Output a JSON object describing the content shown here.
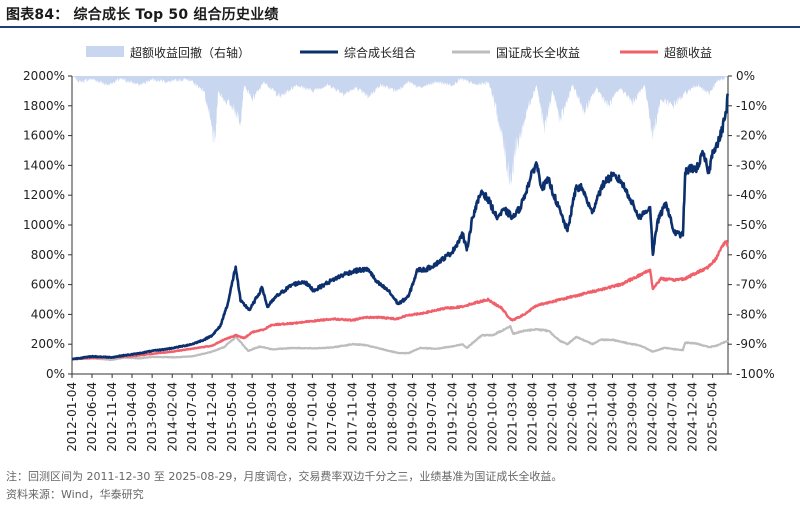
{
  "title": "图表84：  综合成长 Top 50 组合历史业绩",
  "footnote": "注：回测区间为 2011-12-30 至 2025-08-29，月度调仓，交易费率双边千分之三，业绩基准为国证成长全收益。",
  "source": "资料来源：Wind，华泰研究",
  "colors": {
    "portfolio": "#0c2f6e",
    "benchmark": "#bdbdbd",
    "excess": "#f0606a",
    "drawdown": "#c9d6ef",
    "title_rule": "#1f3e7a"
  },
  "chart_data": {
    "type": "line",
    "legend": [
      {
        "key": "drawdown",
        "label": "超额收益回撤（右轴）"
      },
      {
        "key": "portfolio",
        "label": "综合成长组合"
      },
      {
        "key": "benchmark",
        "label": "国证成长全收益"
      },
      {
        "key": "excess",
        "label": "超额收益"
      }
    ],
    "y_left": {
      "min": 0,
      "max": 2000,
      "step": 200,
      "ticks": [
        "0%",
        "200%",
        "400%",
        "600%",
        "800%",
        "1000%",
        "1200%",
        "1400%",
        "1600%",
        "1800%",
        "2000%"
      ]
    },
    "y_right": {
      "min": -100,
      "max": 0,
      "step": 10,
      "ticks": [
        "-100%",
        "-90%",
        "-80%",
        "-70%",
        "-60%",
        "-50%",
        "-40%",
        "-30%",
        "-20%",
        "-10%",
        "0%"
      ]
    },
    "x_start": "2012-01-04",
    "x_end": "2025-08-29",
    "x_ticks": [
      "2012-01-04",
      "2012-06-04",
      "2012-11-04",
      "2013-04-04",
      "2013-09-04",
      "2014-02-04",
      "2014-07-04",
      "2014-12-04",
      "2015-05-04",
      "2015-10-04",
      "2016-03-04",
      "2016-08-04",
      "2017-01-04",
      "2017-06-04",
      "2017-11-04",
      "2018-04-04",
      "2018-09-04",
      "2019-02-04",
      "2019-07-04",
      "2019-12-04",
      "2020-05-04",
      "2020-10-04",
      "2021-03-04",
      "2021-08-04",
      "2022-01-04",
      "2022-06-04",
      "2022-11-04",
      "2023-04-04",
      "2023-09-04",
      "2024-02-04",
      "2024-07-04",
      "2024-12-04",
      "2025-05-04"
    ],
    "series": [
      {
        "name": "综合成长组合",
        "key": "portfolio",
        "axis": "left",
        "points": [
          [
            "2012-01-04",
            100
          ],
          [
            "2012-06-04",
            118
          ],
          [
            "2012-11-04",
            112
          ],
          [
            "2013-02-04",
            125
          ],
          [
            "2013-05-04",
            135
          ],
          [
            "2013-09-04",
            155
          ],
          [
            "2013-12-04",
            165
          ],
          [
            "2014-03-04",
            178
          ],
          [
            "2014-07-04",
            200
          ],
          [
            "2014-10-04",
            230
          ],
          [
            "2014-12-04",
            260
          ],
          [
            "2015-02-04",
            320
          ],
          [
            "2015-04-04",
            480
          ],
          [
            "2015-06-01",
            720
          ],
          [
            "2015-07-08",
            490
          ],
          [
            "2015-09-15",
            430
          ],
          [
            "2015-12-20",
            580
          ],
          [
            "2016-01-28",
            450
          ],
          [
            "2016-04-04",
            520
          ],
          [
            "2016-08-04",
            600
          ],
          [
            "2016-11-04",
            620
          ],
          [
            "2017-01-15",
            560
          ],
          [
            "2017-04-04",
            600
          ],
          [
            "2017-06-04",
            630
          ],
          [
            "2017-09-04",
            670
          ],
          [
            "2017-11-15",
            690
          ],
          [
            "2018-01-20",
            700
          ],
          [
            "2018-03-10",
            700
          ],
          [
            "2018-05-04",
            620
          ],
          [
            "2018-08-04",
            560
          ],
          [
            "2018-10-19",
            470
          ],
          [
            "2019-01-04",
            520
          ],
          [
            "2019-03-15",
            700
          ],
          [
            "2019-05-15",
            700
          ],
          [
            "2019-08-04",
            740
          ],
          [
            "2019-10-04",
            780
          ],
          [
            "2019-12-04",
            820
          ],
          [
            "2020-02-20",
            940
          ],
          [
            "2020-03-23",
            830
          ],
          [
            "2020-05-04",
            1050
          ],
          [
            "2020-07-14",
            1230
          ],
          [
            "2020-09-15",
            1150
          ],
          [
            "2020-11-04",
            1050
          ],
          [
            "2021-01-04",
            1100
          ],
          [
            "2021-03-10",
            1050
          ],
          [
            "2021-05-04",
            1120
          ],
          [
            "2021-07-15",
            1300
          ],
          [
            "2021-09-01",
            1420
          ],
          [
            "2021-10-15",
            1250
          ],
          [
            "2021-12-04",
            1300
          ],
          [
            "2022-02-04",
            1150
          ],
          [
            "2022-04-27",
            960
          ],
          [
            "2022-06-30",
            1250
          ],
          [
            "2022-08-15",
            1250
          ],
          [
            "2022-10-31",
            1080
          ],
          [
            "2022-12-15",
            1200
          ],
          [
            "2023-02-04",
            1290
          ],
          [
            "2023-04-04",
            1330
          ],
          [
            "2023-06-04",
            1300
          ],
          [
            "2023-08-04",
            1200
          ],
          [
            "2023-10-24",
            1050
          ],
          [
            "2024-01-15",
            1120
          ],
          [
            "2024-02-05",
            800
          ],
          [
            "2024-03-10",
            1020
          ],
          [
            "2024-05-15",
            1150
          ],
          [
            "2024-07-15",
            950
          ],
          [
            "2024-09-20",
            930
          ],
          [
            "2024-10-08",
            1350
          ],
          [
            "2024-11-15",
            1380
          ],
          [
            "2025-01-04",
            1380
          ],
          [
            "2025-02-20",
            1480
          ],
          [
            "2025-04-07",
            1350
          ],
          [
            "2025-05-04",
            1500
          ],
          [
            "2025-06-15",
            1550
          ],
          [
            "2025-07-15",
            1640
          ],
          [
            "2025-08-15",
            1760
          ],
          [
            "2025-08-29",
            1880
          ]
        ]
      },
      {
        "name": "国证成长全收益",
        "key": "benchmark",
        "axis": "left",
        "points": [
          [
            "2012-01-04",
            100
          ],
          [
            "2012-06-04",
            105
          ],
          [
            "2012-11-04",
            95
          ],
          [
            "2013-02-04",
            110
          ],
          [
            "2013-06-04",
            105
          ],
          [
            "2013-09-04",
            115
          ],
          [
            "2014-03-04",
            112
          ],
          [
            "2014-07-04",
            118
          ],
          [
            "2014-12-04",
            150
          ],
          [
            "2015-03-04",
            180
          ],
          [
            "2015-06-04",
            250
          ],
          [
            "2015-09-04",
            155
          ],
          [
            "2015-12-04",
            185
          ],
          [
            "2016-03-04",
            165
          ],
          [
            "2016-08-04",
            175
          ],
          [
            "2017-01-04",
            172
          ],
          [
            "2017-06-04",
            178
          ],
          [
            "2017-11-04",
            200
          ],
          [
            "2018-02-04",
            195
          ],
          [
            "2018-06-04",
            170
          ],
          [
            "2018-10-19",
            140
          ],
          [
            "2019-01-04",
            140
          ],
          [
            "2019-04-04",
            175
          ],
          [
            "2019-08-04",
            170
          ],
          [
            "2019-12-04",
            185
          ],
          [
            "2020-02-20",
            200
          ],
          [
            "2020-03-23",
            175
          ],
          [
            "2020-07-14",
            260
          ],
          [
            "2020-10-04",
            260
          ],
          [
            "2021-01-04",
            300
          ],
          [
            "2021-02-18",
            320
          ],
          [
            "2021-03-10",
            270
          ],
          [
            "2021-06-04",
            290
          ],
          [
            "2021-09-01",
            300
          ],
          [
            "2021-12-04",
            290
          ],
          [
            "2022-03-04",
            220
          ],
          [
            "2022-04-27",
            200
          ],
          [
            "2022-07-04",
            250
          ],
          [
            "2022-10-31",
            200
          ],
          [
            "2023-01-04",
            230
          ],
          [
            "2023-04-04",
            230
          ],
          [
            "2023-08-04",
            205
          ],
          [
            "2023-11-04",
            190
          ],
          [
            "2024-02-05",
            150
          ],
          [
            "2024-05-04",
            175
          ],
          [
            "2024-09-20",
            160
          ],
          [
            "2024-10-08",
            210
          ],
          [
            "2025-01-04",
            205
          ],
          [
            "2025-04-07",
            180
          ],
          [
            "2025-06-04",
            190
          ],
          [
            "2025-08-29",
            225
          ]
        ]
      },
      {
        "name": "超额收益",
        "key": "excess",
        "axis": "left",
        "points": [
          [
            "2012-01-04",
            100
          ],
          [
            "2012-06-04",
            108
          ],
          [
            "2012-11-04",
            112
          ],
          [
            "2013-04-04",
            120
          ],
          [
            "2013-09-04",
            135
          ],
          [
            "2014-02-04",
            150
          ],
          [
            "2014-07-04",
            170
          ],
          [
            "2014-12-04",
            190
          ],
          [
            "2015-03-04",
            230
          ],
          [
            "2015-06-04",
            260
          ],
          [
            "2015-08-04",
            240
          ],
          [
            "2015-10-04",
            280
          ],
          [
            "2016-01-04",
            300
          ],
          [
            "2016-03-04",
            330
          ],
          [
            "2016-08-04",
            340
          ],
          [
            "2017-01-04",
            355
          ],
          [
            "2017-06-04",
            370
          ],
          [
            "2017-11-04",
            360
          ],
          [
            "2018-02-04",
            380
          ],
          [
            "2018-06-04",
            380
          ],
          [
            "2018-10-04",
            370
          ],
          [
            "2019-01-04",
            395
          ],
          [
            "2019-05-04",
            410
          ],
          [
            "2019-10-04",
            440
          ],
          [
            "2020-02-04",
            450
          ],
          [
            "2020-06-04",
            480
          ],
          [
            "2020-09-04",
            500
          ],
          [
            "2020-10-04",
            480
          ],
          [
            "2020-12-15",
            440
          ],
          [
            "2021-02-04",
            380
          ],
          [
            "2021-03-04",
            360
          ],
          [
            "2021-06-04",
            400
          ],
          [
            "2021-09-04",
            460
          ],
          [
            "2021-12-04",
            480
          ],
          [
            "2022-03-04",
            500
          ],
          [
            "2022-06-04",
            520
          ],
          [
            "2022-09-04",
            540
          ],
          [
            "2022-12-04",
            560
          ],
          [
            "2023-03-04",
            580
          ],
          [
            "2023-06-04",
            600
          ],
          [
            "2023-09-04",
            640
          ],
          [
            "2023-12-04",
            680
          ],
          [
            "2024-01-15",
            700
          ],
          [
            "2024-02-05",
            570
          ],
          [
            "2024-04-04",
            640
          ],
          [
            "2024-07-04",
            630
          ],
          [
            "2024-10-04",
            640
          ],
          [
            "2025-01-04",
            680
          ],
          [
            "2025-04-04",
            720
          ],
          [
            "2025-06-04",
            780
          ],
          [
            "2025-07-15",
            860
          ],
          [
            "2025-08-15",
            890
          ],
          [
            "2025-08-29",
            860
          ]
        ]
      },
      {
        "name": "超额收益回撤（右轴）",
        "key": "drawdown",
        "axis": "right",
        "points": [
          [
            "2012-01-04",
            0
          ],
          [
            "2012-03-04",
            -2
          ],
          [
            "2012-06-04",
            -1
          ],
          [
            "2012-10-04",
            -3
          ],
          [
            "2013-01-04",
            -1
          ],
          [
            "2013-06-04",
            -3
          ],
          [
            "2013-09-04",
            -1
          ],
          [
            "2014-01-04",
            -2
          ],
          [
            "2014-06-04",
            -1
          ],
          [
            "2014-10-04",
            -5
          ],
          [
            "2014-12-25",
            -23
          ],
          [
            "2015-01-20",
            -5
          ],
          [
            "2015-03-04",
            -8
          ],
          [
            "2015-05-04",
            -10
          ],
          [
            "2015-07-08",
            -15
          ],
          [
            "2015-08-04",
            -3
          ],
          [
            "2015-10-04",
            -8
          ],
          [
            "2016-01-04",
            -2
          ],
          [
            "2016-05-04",
            -7
          ],
          [
            "2016-09-04",
            -3
          ],
          [
            "2017-01-04",
            -5
          ],
          [
            "2017-05-04",
            -3
          ],
          [
            "2017-09-04",
            -6
          ],
          [
            "2017-12-04",
            -4
          ],
          [
            "2018-03-04",
            -7
          ],
          [
            "2018-06-04",
            -3
          ],
          [
            "2018-10-04",
            -5
          ],
          [
            "2019-01-04",
            -2
          ],
          [
            "2019-04-04",
            -4
          ],
          [
            "2019-08-04",
            -2
          ],
          [
            "2019-12-04",
            -3
          ],
          [
            "2020-02-04",
            -1
          ],
          [
            "2020-06-04",
            -3
          ],
          [
            "2020-09-04",
            -2
          ],
          [
            "2020-10-15",
            -8
          ],
          [
            "2020-12-04",
            -18
          ],
          [
            "2021-01-15",
            -28
          ],
          [
            "2021-02-25",
            -35
          ],
          [
            "2021-03-15",
            -27
          ],
          [
            "2021-05-04",
            -20
          ],
          [
            "2021-07-04",
            -10
          ],
          [
            "2021-09-04",
            -3
          ],
          [
            "2021-11-04",
            -18
          ],
          [
            "2022-01-04",
            -5
          ],
          [
            "2022-03-04",
            -15
          ],
          [
            "2022-06-04",
            -3
          ],
          [
            "2022-09-04",
            -12
          ],
          [
            "2022-12-04",
            -4
          ],
          [
            "2023-03-04",
            -10
          ],
          [
            "2023-06-04",
            -4
          ],
          [
            "2023-09-04",
            -9
          ],
          [
            "2023-12-04",
            -3
          ],
          [
            "2024-02-05",
            -20
          ],
          [
            "2024-04-04",
            -8
          ],
          [
            "2024-07-04",
            -10
          ],
          [
            "2024-10-04",
            -6
          ],
          [
            "2025-01-04",
            -3
          ],
          [
            "2025-04-04",
            -6
          ],
          [
            "2025-06-04",
            -2
          ],
          [
            "2025-08-29",
            0
          ]
        ]
      }
    ]
  }
}
